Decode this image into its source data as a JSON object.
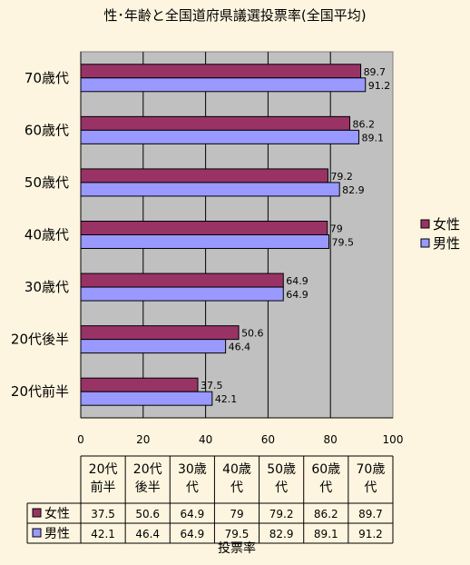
{
  "chart_data": {
    "type": "bar",
    "orientation": "horizontal",
    "title": "性･年齢と全国道府県議選投票率(全国平均)",
    "xlabel": "投票率",
    "xlim": [
      0,
      100
    ],
    "xticks": [
      "0",
      "20",
      "40",
      "60",
      "80",
      "100"
    ],
    "grid": true,
    "legend_position": "right",
    "categories": [
      "70歳代",
      "60歳代",
      "50歳代",
      "40歳代",
      "30歳代",
      "20代後半",
      "20代前半"
    ],
    "series": [
      {
        "name": "女性",
        "color": "#993366",
        "values": [
          89.7,
          86.2,
          79.2,
          79,
          64.9,
          50.6,
          37.5
        ]
      },
      {
        "name": "男性",
        "color": "#9999ff",
        "values": [
          91.2,
          89.1,
          82.9,
          79.5,
          64.9,
          46.4,
          42.1
        ]
      }
    ],
    "data_labels": [
      [
        "89.7",
        "86.2",
        "79.2",
        "79",
        "64.9",
        "50.6",
        "37.5"
      ],
      [
        "91.2",
        "89.1",
        "82.9",
        "79.5",
        "64.9",
        "46.4",
        "42.1"
      ]
    ],
    "table": {
      "headers": [
        [
          "20代",
          "前半"
        ],
        [
          "20代",
          "後半"
        ],
        [
          "30歳",
          "代"
        ],
        [
          "40歳",
          "代"
        ],
        [
          "50歳",
          "代"
        ],
        [
          "60歳",
          "代"
        ],
        [
          "70歳",
          "代"
        ]
      ],
      "rows": [
        [
          "37.5",
          "50.6",
          "64.9",
          "79",
          "79.2",
          "86.2",
          "89.7"
        ],
        [
          "42.1",
          "46.4",
          "64.9",
          "79.5",
          "82.9",
          "89.1",
          "91.2"
        ]
      ]
    }
  }
}
